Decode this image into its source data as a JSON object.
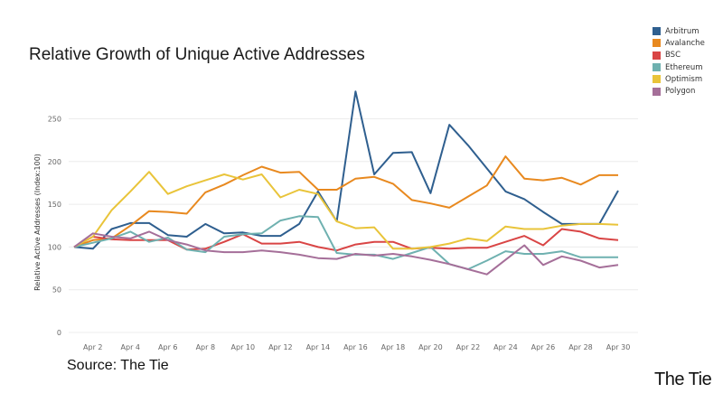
{
  "title": "Relative Growth of Unique Active Addresses",
  "source": "Source: The Tie",
  "brand": "The Tie",
  "chart_data": {
    "type": "line",
    "ylabel": "Relative Active Addresses (Index:100)",
    "xlabel": "",
    "ylim": [
      0,
      250
    ],
    "yticks": [
      0,
      50,
      100,
      150,
      200,
      250
    ],
    "grid": "horizontal",
    "legend_position": "top-right",
    "x": [
      "Apr 1",
      "Apr 2",
      "Apr 3",
      "Apr 4",
      "Apr 5",
      "Apr 6",
      "Apr 7",
      "Apr 8",
      "Apr 9",
      "Apr 10",
      "Apr 11",
      "Apr 12",
      "Apr 13",
      "Apr 14",
      "Apr 15",
      "Apr 16",
      "Apr 17",
      "Apr 18",
      "Apr 19",
      "Apr 20",
      "Apr 21",
      "Apr 22",
      "Apr 23",
      "Apr 24",
      "Apr 25",
      "Apr 26",
      "Apr 27",
      "Apr 28",
      "Apr 29",
      "Apr 30"
    ],
    "xticks": [
      "Apr 2",
      "Apr 4",
      "Apr 6",
      "Apr 8",
      "Apr 10",
      "Apr 12",
      "Apr 14",
      "Apr 16",
      "Apr 18",
      "Apr 20",
      "Apr 22",
      "Apr 24",
      "Apr 26",
      "Apr 28",
      "Apr 30"
    ],
    "series": [
      {
        "name": "Arbitrum",
        "color": "#2f5f8f",
        "values": [
          100,
          98,
          121,
          128,
          128,
          114,
          112,
          127,
          116,
          117,
          113,
          113,
          127,
          165,
          130,
          282,
          185,
          210,
          211,
          163,
          243,
          219,
          192,
          165,
          156,
          141,
          127,
          127,
          127,
          166
        ]
      },
      {
        "name": "Avalanche",
        "color": "#e8891f",
        "values": [
          100,
          108,
          110,
          125,
          142,
          141,
          139,
          164,
          173,
          184,
          194,
          187,
          188,
          167,
          167,
          180,
          182,
          174,
          155,
          151,
          146,
          159,
          172,
          206,
          180,
          178,
          181,
          173,
          184,
          184
        ]
      },
      {
        "name": "BSC",
        "color": "#d94545",
        "values": [
          100,
          112,
          109,
          108,
          108,
          108,
          97,
          98,
          106,
          115,
          104,
          104,
          106,
          100,
          96,
          103,
          106,
          106,
          98,
          99,
          98,
          99,
          99,
          106,
          113,
          102,
          121,
          118,
          110,
          108
        ]
      },
      {
        "name": "Ethereum",
        "color": "#6fb1b0",
        "values": [
          100,
          105,
          110,
          118,
          106,
          111,
          97,
          94,
          112,
          115,
          116,
          131,
          136,
          135,
          93,
          91,
          91,
          86,
          93,
          100,
          80,
          74,
          84,
          95,
          92,
          92,
          95,
          88,
          88,
          88
        ]
      },
      {
        "name": "Optimism",
        "color": "#e9c43a",
        "values": [
          100,
          112,
          143,
          165,
          188,
          162,
          171,
          178,
          185,
          179,
          185,
          158,
          167,
          162,
          130,
          122,
          123,
          98,
          98,
          100,
          104,
          110,
          107,
          124,
          121,
          121,
          125,
          127,
          127,
          126
        ]
      },
      {
        "name": "Polygon",
        "color": "#a56f99",
        "values": [
          100,
          116,
          112,
          110,
          118,
          108,
          103,
          96,
          94,
          94,
          96,
          94,
          91,
          87,
          86,
          92,
          90,
          92,
          89,
          85,
          80,
          74,
          68,
          85,
          102,
          79,
          89,
          84,
          76,
          79
        ]
      }
    ]
  }
}
